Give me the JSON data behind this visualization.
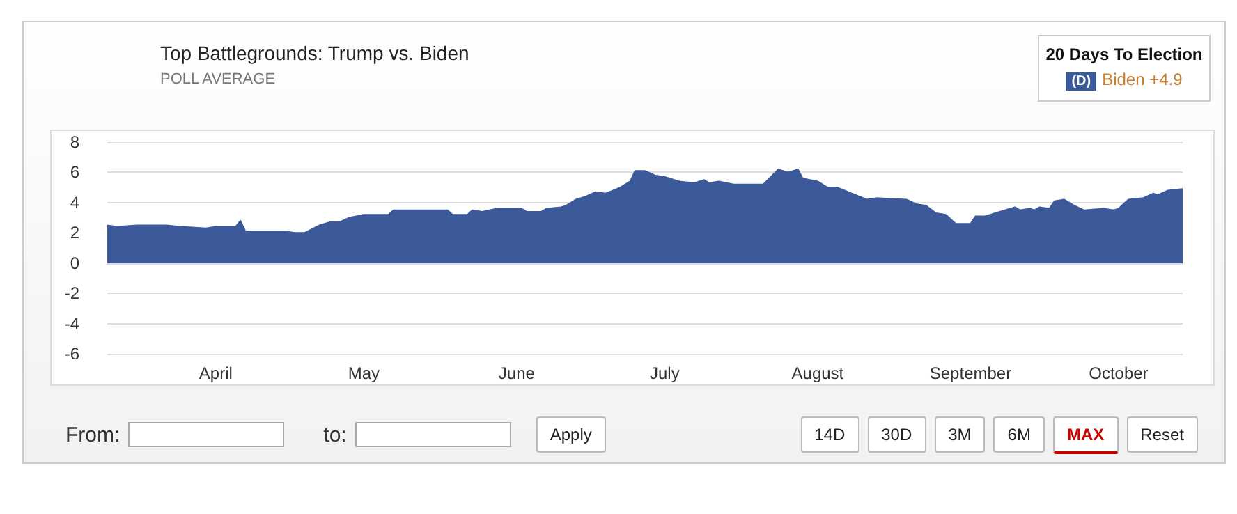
{
  "chart_data": {
    "type": "area",
    "title": "Top Battlegrounds: Trump vs. Biden",
    "subtitle": "POLL AVERAGE",
    "x": [
      "--03-10",
      "--03-12",
      "--03-16",
      "--03-22",
      "--03-25",
      "--03-30",
      "--04-01",
      "--04-05",
      "--04-06",
      "--04-07",
      "--04-15",
      "--04-17",
      "--04-19",
      "--04-22",
      "--04-24",
      "--04-26",
      "--04-28",
      "--05-01",
      "--05-06",
      "--05-07",
      "--05-18",
      "--05-19",
      "--05-22",
      "--05-23",
      "--05-25",
      "--05-28",
      "--06-02",
      "--06-03",
      "--06-06",
      "--06-07",
      "--06-10",
      "--06-11",
      "--06-13",
      "--06-15",
      "--06-17",
      "--06-19",
      "--06-22",
      "--06-24",
      "--06-25",
      "--06-27",
      "--06-29",
      "--07-01",
      "--07-04",
      "--07-07",
      "--07-09",
      "--07-10",
      "--07-12",
      "--07-15",
      "--07-21",
      "--07-24",
      "--07-26",
      "--07-28",
      "--07-29",
      "--08-01",
      "--08-03",
      "--08-05",
      "--08-08",
      "--08-11",
      "--08-13",
      "--08-19",
      "--08-21",
      "--08-23",
      "--08-25",
      "--08-27",
      "--08-29",
      "--09-01",
      "--09-02",
      "--09-04",
      "--09-06",
      "--09-10",
      "--09-11",
      "--09-13",
      "--09-14",
      "--09-15",
      "--09-17",
      "--09-18",
      "--09-20",
      "--09-22",
      "--09-24",
      "--09-28",
      "--09-30",
      "--10-01",
      "--10-03",
      "--10-06",
      "--10-08",
      "--10-09",
      "--10-11",
      "--10-14"
    ],
    "series": [
      {
        "color": "#3c5a99",
        "values": [
          2.5,
          2.4,
          2.5,
          2.5,
          2.4,
          2.3,
          2.4,
          2.4,
          2.8,
          2.1,
          2.1,
          2.0,
          2.0,
          2.5,
          2.7,
          2.7,
          3.0,
          3.2,
          3.2,
          3.5,
          3.5,
          3.2,
          3.2,
          3.5,
          3.4,
          3.6,
          3.6,
          3.4,
          3.4,
          3.6,
          3.7,
          3.8,
          4.2,
          4.4,
          4.7,
          4.6,
          5.0,
          5.4,
          6.1,
          6.1,
          5.8,
          5.7,
          5.4,
          5.3,
          5.5,
          5.3,
          5.4,
          5.2,
          5.2,
          6.2,
          6.0,
          6.2,
          5.6,
          5.4,
          5.0,
          5.0,
          4.6,
          4.2,
          4.3,
          4.2,
          3.9,
          3.8,
          3.3,
          3.2,
          2.6,
          2.6,
          3.1,
          3.1,
          3.3,
          3.7,
          3.5,
          3.6,
          3.5,
          3.7,
          3.6,
          4.1,
          4.2,
          3.8,
          3.5,
          3.6,
          3.5,
          3.6,
          4.2,
          4.3,
          4.6,
          4.5,
          4.8,
          4.9
        ]
      }
    ],
    "xlim": [
      "--03-10",
      "--10-14"
    ],
    "xticks": [
      {
        "value": "--04-01",
        "label": "April"
      },
      {
        "value": "--05-01",
        "label": "May"
      },
      {
        "value": "--06-01",
        "label": "June"
      },
      {
        "value": "--07-01",
        "label": "July"
      },
      {
        "value": "--08-01",
        "label": "August"
      },
      {
        "value": "--09-01",
        "label": "September"
      },
      {
        "value": "--10-01",
        "label": "October"
      }
    ],
    "ylim": [
      -6,
      8
    ],
    "yticks": [
      -6,
      -4,
      -2,
      0,
      2,
      4,
      6,
      8
    ],
    "grid": "y",
    "annotations": [
      "20 Days To Election",
      "(D)",
      "Biden +4.9",
      "From:",
      "to:",
      "Apply",
      "14D",
      "30D",
      "3M",
      "6M",
      "MAX",
      "Reset"
    ]
  }
}
